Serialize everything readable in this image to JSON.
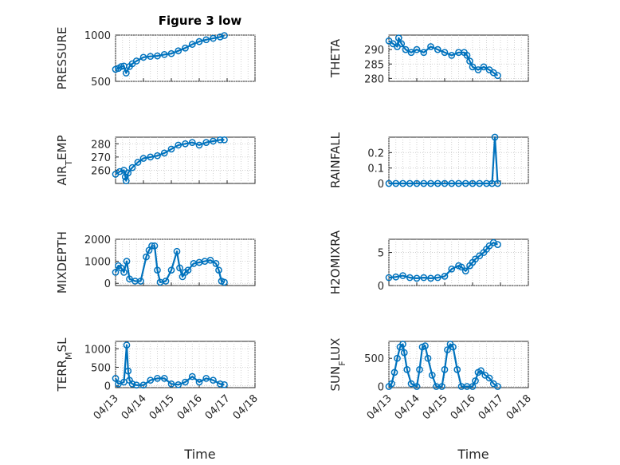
{
  "figure": {
    "title": "Figure 3 low",
    "marker_color": "#0072BD",
    "grid": true,
    "xlabel": "Time"
  },
  "chart_data": [
    {
      "type": "scatter",
      "title": "Figure 3 low",
      "ylabel_parts": [
        {
          "t": "PRESSURE",
          "sub": false
        }
      ],
      "xlim": [
        0,
        5
      ],
      "ylim": [
        500,
        1000
      ],
      "yticks": [
        500,
        1000
      ],
      "x_tick_labels_shown": false,
      "x": [
        0,
        0.1,
        0.2,
        0.3,
        0.38,
        0.5,
        0.6,
        0.75,
        1.0,
        1.25,
        1.5,
        1.75,
        2.0,
        2.25,
        2.5,
        2.75,
        3.0,
        3.25,
        3.5,
        3.75,
        3.9
      ],
      "y": [
        630,
        640,
        660,
        665,
        590,
        660,
        690,
        720,
        760,
        770,
        775,
        790,
        800,
        830,
        860,
        900,
        930,
        950,
        965,
        980,
        995
      ]
    },
    {
      "type": "scatter",
      "ylabel_parts": [
        {
          "t": "THETA",
          "sub": false
        }
      ],
      "xlim": [
        0,
        5
      ],
      "ylim": [
        279,
        295
      ],
      "yticks": [
        280,
        285,
        290
      ],
      "x_tick_labels_shown": false,
      "x": [
        0,
        0.15,
        0.3,
        0.35,
        0.45,
        0.6,
        0.8,
        1.0,
        1.25,
        1.5,
        1.75,
        2.0,
        2.25,
        2.5,
        2.7,
        2.8,
        2.9,
        3.0,
        3.2,
        3.4,
        3.6,
        3.75,
        3.9
      ],
      "y": [
        293,
        292,
        291,
        294,
        292,
        290,
        289,
        290,
        289,
        291,
        290,
        289,
        288,
        289,
        289,
        288,
        286,
        284,
        283,
        284,
        283,
        282,
        281
      ]
    },
    {
      "type": "scatter",
      "ylabel_parts": [
        {
          "t": "AIR",
          "sub": false
        },
        {
          "t": "T",
          "sub": true
        },
        {
          "t": "EMP",
          "sub": false
        }
      ],
      "xlim": [
        0,
        5
      ],
      "ylim": [
        250,
        285
      ],
      "yticks": [
        260,
        270,
        280
      ],
      "x_tick_labels_shown": false,
      "x": [
        0,
        0.15,
        0.3,
        0.35,
        0.38,
        0.45,
        0.6,
        0.8,
        1.0,
        1.25,
        1.5,
        1.75,
        2.0,
        2.25,
        2.5,
        2.75,
        3.0,
        3.25,
        3.5,
        3.75,
        3.9
      ],
      "y": [
        257,
        259,
        260,
        255,
        252,
        258,
        262,
        266,
        269,
        270,
        271,
        273,
        276,
        279,
        280,
        281,
        279,
        281,
        282,
        283,
        283
      ]
    },
    {
      "type": "scatter",
      "ylabel_parts": [
        {
          "t": "RAINFALL",
          "sub": false
        }
      ],
      "xlim": [
        0,
        5
      ],
      "ylim": [
        0,
        0.3
      ],
      "yticks": [
        0,
        0.1,
        0.2
      ],
      "x_tick_labels_shown": false,
      "x": [
        0,
        0.25,
        0.5,
        0.75,
        1.0,
        1.25,
        1.5,
        1.75,
        2.0,
        2.25,
        2.5,
        2.75,
        3.0,
        3.25,
        3.5,
        3.7,
        3.8,
        3.9
      ],
      "y": [
        0,
        0,
        0,
        0,
        0,
        0,
        0,
        0,
        0,
        0,
        0,
        0,
        0,
        0,
        0,
        0,
        0.3,
        0
      ]
    },
    {
      "type": "scatter",
      "ylabel_parts": [
        {
          "t": "MIXDEPTH",
          "sub": false
        }
      ],
      "xlim": [
        0,
        5
      ],
      "ylim": [
        -100,
        2000
      ],
      "yticks": [
        0,
        1000,
        2000
      ],
      "x_tick_labels_shown": false,
      "x": [
        0,
        0.1,
        0.2,
        0.3,
        0.4,
        0.5,
        0.7,
        0.9,
        1.1,
        1.2,
        1.3,
        1.4,
        1.5,
        1.6,
        1.8,
        2.0,
        2.2,
        2.3,
        2.4,
        2.5,
        2.6,
        2.8,
        3.0,
        3.2,
        3.4,
        3.6,
        3.7,
        3.8,
        3.9
      ],
      "y": [
        500,
        800,
        700,
        500,
        1000,
        200,
        100,
        100,
        1200,
        1500,
        1700,
        1700,
        600,
        50,
        100,
        600,
        1450,
        700,
        300,
        500,
        600,
        900,
        950,
        1000,
        1050,
        900,
        600,
        100,
        50
      ]
    },
    {
      "type": "scatter",
      "ylabel_parts": [
        {
          "t": "H2OMIXRA",
          "sub": false
        }
      ],
      "xlim": [
        0,
        5
      ],
      "ylim": [
        0,
        7
      ],
      "yticks": [
        0,
        5
      ],
      "x_tick_labels_shown": false,
      "x": [
        0,
        0.25,
        0.5,
        0.75,
        1.0,
        1.25,
        1.5,
        1.75,
        2.0,
        2.25,
        2.5,
        2.6,
        2.75,
        2.9,
        3.0,
        3.1,
        3.25,
        3.4,
        3.5,
        3.6,
        3.75,
        3.9
      ],
      "y": [
        1.2,
        1.3,
        1.5,
        1.2,
        1.1,
        1.2,
        1.1,
        1.2,
        1.4,
        2.5,
        3.0,
        2.8,
        2.2,
        3.0,
        3.5,
        4.0,
        4.5,
        5.0,
        5.5,
        6.0,
        6.5,
        6.2
      ]
    },
    {
      "type": "scatter",
      "ylabel_parts": [
        {
          "t": "TERR",
          "sub": false
        },
        {
          "t": "M",
          "sub": true
        },
        {
          "t": "SL",
          "sub": false
        }
      ],
      "xlim": [
        0,
        5
      ],
      "ylim": [
        -50,
        1200
      ],
      "yticks": [
        0,
        500,
        1000
      ],
      "x_tick_labels_shown": true,
      "x_tick_labels": [
        "04/13",
        "04/14",
        "04/15",
        "04/16",
        "04/17",
        "04/18"
      ],
      "x": [
        0,
        0.1,
        0.3,
        0.4,
        0.45,
        0.5,
        0.6,
        0.75,
        1.0,
        1.25,
        1.5,
        1.75,
        2.0,
        2.25,
        2.5,
        2.75,
        3.0,
        3.25,
        3.5,
        3.75,
        3.9
      ],
      "y": [
        200,
        50,
        100,
        1100,
        400,
        150,
        50,
        20,
        20,
        150,
        200,
        200,
        50,
        30,
        100,
        250,
        100,
        200,
        150,
        50,
        30
      ]
    },
    {
      "type": "scatter",
      "ylabel_parts": [
        {
          "t": "SUN",
          "sub": false
        },
        {
          "t": "F",
          "sub": true
        },
        {
          "t": "LUX",
          "sub": false
        }
      ],
      "xlim": [
        0,
        5
      ],
      "ylim": [
        -20,
        800
      ],
      "yticks": [
        0,
        500
      ],
      "x_tick_labels_shown": true,
      "x_tick_labels": [
        "04/13",
        "04/14",
        "04/15",
        "04/16",
        "04/17",
        "04/18"
      ],
      "x": [
        0,
        0.1,
        0.2,
        0.3,
        0.4,
        0.5,
        0.55,
        0.65,
        0.8,
        1.0,
        1.1,
        1.2,
        1.3,
        1.4,
        1.55,
        1.7,
        1.9,
        2.0,
        2.1,
        2.2,
        2.3,
        2.45,
        2.6,
        2.8,
        3.0,
        3.1,
        3.2,
        3.3,
        3.45,
        3.6,
        3.75,
        3.9
      ],
      "y": [
        0,
        50,
        250,
        500,
        700,
        750,
        600,
        300,
        50,
        0,
        300,
        700,
        720,
        500,
        200,
        0,
        0,
        300,
        650,
        750,
        700,
        300,
        0,
        0,
        0,
        100,
        250,
        280,
        200,
        150,
        50,
        0
      ]
    }
  ]
}
